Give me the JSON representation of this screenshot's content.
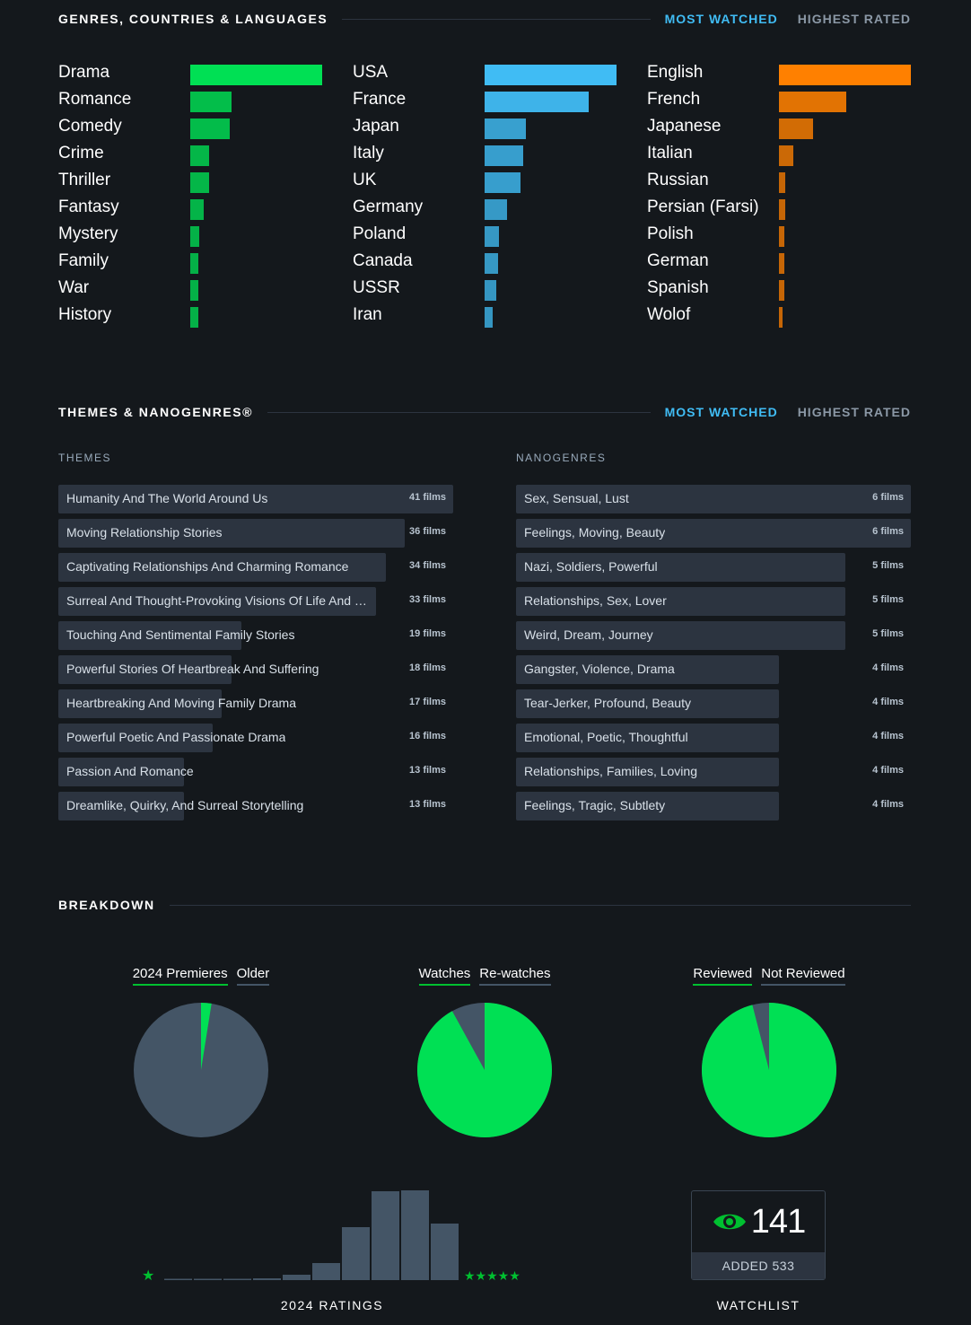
{
  "gcl": {
    "title": "GENRES, COUNTRIES & LANGUAGES",
    "tab_active": "MOST WATCHED",
    "tab_inactive": "HIGHEST RATED",
    "colors": {
      "genres": "#00e054",
      "countries": "#40bcf4",
      "languages": "#ff8000"
    },
    "genres": [
      {
        "label": "Drama",
        "value": 1.0
      },
      {
        "label": "Romance",
        "value": 0.31
      },
      {
        "label": "Comedy",
        "value": 0.3
      },
      {
        "label": "Crime",
        "value": 0.14
      },
      {
        "label": "Thriller",
        "value": 0.14
      },
      {
        "label": "Fantasy",
        "value": 0.1
      },
      {
        "label": "Mystery",
        "value": 0.07
      },
      {
        "label": "Family",
        "value": 0.06
      },
      {
        "label": "War",
        "value": 0.06
      },
      {
        "label": "History",
        "value": 0.06
      }
    ],
    "countries": [
      {
        "label": "USA",
        "value": 1.0
      },
      {
        "label": "France",
        "value": 0.79
      },
      {
        "label": "Japan",
        "value": 0.31
      },
      {
        "label": "Italy",
        "value": 0.29
      },
      {
        "label": "UK",
        "value": 0.27
      },
      {
        "label": "Germany",
        "value": 0.17
      },
      {
        "label": "Poland",
        "value": 0.11
      },
      {
        "label": "Canada",
        "value": 0.1
      },
      {
        "label": "USSR",
        "value": 0.09
      },
      {
        "label": "Iran",
        "value": 0.06
      }
    ],
    "languages": [
      {
        "label": "English",
        "value": 1.0
      },
      {
        "label": "French",
        "value": 0.51
      },
      {
        "label": "Japanese",
        "value": 0.26
      },
      {
        "label": "Italian",
        "value": 0.11
      },
      {
        "label": "Russian",
        "value": 0.05
      },
      {
        "label": "Persian (Farsi)",
        "value": 0.05
      },
      {
        "label": "Polish",
        "value": 0.04
      },
      {
        "label": "German",
        "value": 0.04
      },
      {
        "label": "Spanish",
        "value": 0.04
      },
      {
        "label": "Wolof",
        "value": 0.03
      }
    ]
  },
  "themes_section": {
    "title": "THEMES & NANOGENRES®",
    "tab_active": "MOST WATCHED",
    "tab_inactive": "HIGHEST RATED",
    "themes_title": "THEMES",
    "nanogenres_title": "NANOGENRES",
    "themes": [
      {
        "label": "Humanity And The World Around Us",
        "count": "41 films",
        "films": 41
      },
      {
        "label": "Moving Relationship Stories",
        "count": "36 films",
        "films": 36
      },
      {
        "label": "Captivating Relationships And Charming Romance",
        "count": "34 films",
        "films": 34
      },
      {
        "label": "Surreal And Thought-Provoking Visions Of Life And Death",
        "count": "33 films",
        "films": 33
      },
      {
        "label": "Touching And Sentimental Family Stories",
        "count": "19 films",
        "films": 19
      },
      {
        "label": "Powerful Stories Of Heartbreak And Suffering",
        "count": "18 films",
        "films": 18
      },
      {
        "label": "Heartbreaking And Moving Family Drama",
        "count": "17 films",
        "films": 17
      },
      {
        "label": "Powerful Poetic And Passionate Drama",
        "count": "16 films",
        "films": 16
      },
      {
        "label": "Passion And Romance",
        "count": "13 films",
        "films": 13
      },
      {
        "label": "Dreamlike, Quirky, And Surreal Storytelling",
        "count": "13 films",
        "films": 13
      }
    ],
    "nanogenres": [
      {
        "label": "Sex, Sensual, Lust",
        "count": "6 films",
        "films": 6
      },
      {
        "label": "Feelings, Moving, Beauty",
        "count": "6 films",
        "films": 6
      },
      {
        "label": "Nazi, Soldiers, Powerful",
        "count": "5 films",
        "films": 5
      },
      {
        "label": "Relationships, Sex, Lover",
        "count": "5 films",
        "films": 5
      },
      {
        "label": "Weird, Dream, Journey",
        "count": "5 films",
        "films": 5
      },
      {
        "label": "Gangster, Violence, Drama",
        "count": "4 films",
        "films": 4
      },
      {
        "label": "Tear-Jerker, Profound, Beauty",
        "count": "4 films",
        "films": 4
      },
      {
        "label": "Emotional, Poetic, Thoughtful",
        "count": "4 films",
        "films": 4
      },
      {
        "label": "Relationships, Families, Loving",
        "count": "4 films",
        "films": 4
      },
      {
        "label": "Feelings, Tragic, Subtlety",
        "count": "4 films",
        "films": 4
      }
    ]
  },
  "breakdown": {
    "title": "BREAKDOWN",
    "colors": {
      "primary": "#00e054",
      "secondary": "#445566"
    },
    "pies": [
      {
        "label_a": "2024 Premieres",
        "label_b": "Older",
        "fraction_a": 0.025
      },
      {
        "label_a": "Watches",
        "label_b": "Re-watches",
        "fraction_a": 0.92
      },
      {
        "label_a": "Reviewed",
        "label_b": "Not Reviewed",
        "fraction_a": 0.96
      }
    ],
    "ratings": {
      "caption": "2024 RATINGS",
      "low_star": "★",
      "high_stars": "★★★★★",
      "values": [
        0.01,
        0.01,
        0.01,
        0.02,
        0.06,
        0.19,
        0.59,
        0.99,
        1.0,
        0.63
      ]
    },
    "watchlist": {
      "count": "141",
      "added": "ADDED 533",
      "caption": "WATCHLIST"
    }
  }
}
